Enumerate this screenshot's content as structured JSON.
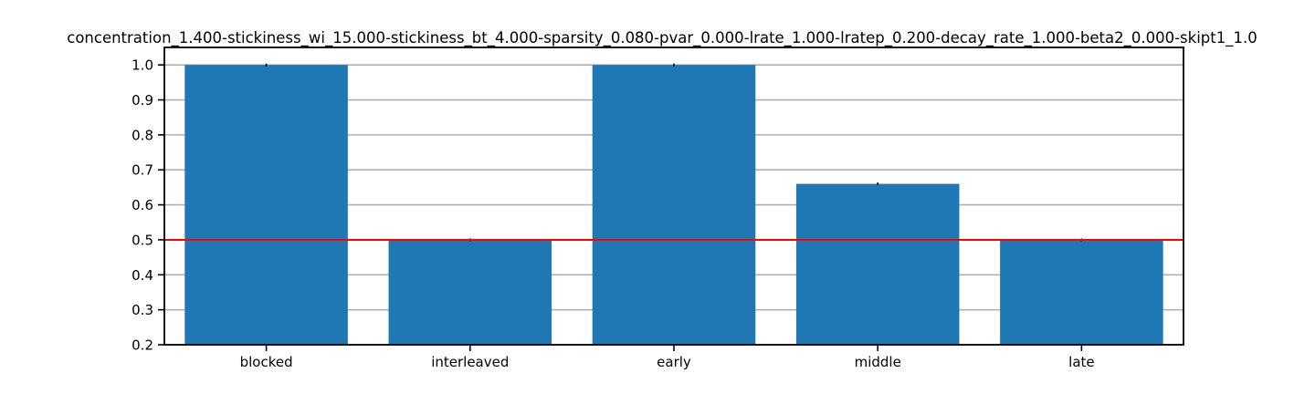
{
  "chart_data": {
    "type": "bar",
    "title": "concentration_1.400-stickiness_wi_15.000-stickiness_bt_4.000-sparsity_0.080-pvar_0.000-lrate_1.000-lratep_0.200-decay_rate_1.000-beta2_0.000-skipt1_1.0",
    "xlabel": "",
    "ylabel": "",
    "categories": [
      "blocked",
      "interleaved",
      "early",
      "middle",
      "late"
    ],
    "values": [
      1.0,
      0.5,
      1.0,
      0.66,
      0.5
    ],
    "ylim": [
      0.2,
      1.05
    ],
    "yticks": [
      0.2,
      0.3,
      0.4,
      0.5,
      0.6,
      0.7,
      0.8,
      0.9,
      1.0
    ],
    "ytick_labels": [
      "0.2",
      "0.3",
      "0.4",
      "0.5",
      "0.6",
      "0.7",
      "0.8",
      "0.9",
      "1.0"
    ],
    "reference_line": 0.5,
    "grid": "y-major",
    "legend": "none",
    "colors": {
      "bar": "#1f77b4",
      "reference_line": "#ff0000",
      "grid": "#b0b0b0",
      "axis": "#000000",
      "error": "#000000"
    }
  }
}
